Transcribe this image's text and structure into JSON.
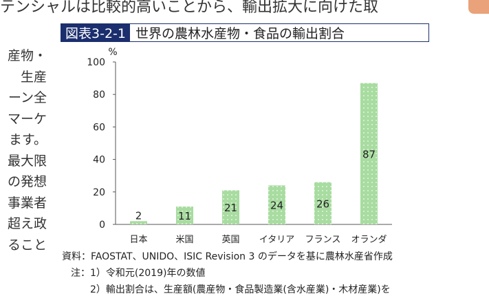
{
  "page": {
    "top_line": "テンシャルは比較的高いことから、輸出拡大に向けた取",
    "left_column": [
      "産物・",
      "生産",
      "ーン全",
      "マーケ",
      "ます。",
      "最大限",
      "の発想",
      "事業者",
      "超え政",
      "ること"
    ]
  },
  "figure": {
    "number": "図表3-2-1",
    "title": "世界の農林水産物・食品の輸出割合"
  },
  "chart_data": {
    "type": "bar",
    "categories": [
      "日本",
      "米国",
      "英国",
      "イタリア",
      "フランス",
      "オランダ"
    ],
    "values": [
      2,
      11,
      21,
      24,
      26,
      87
    ],
    "value_labels": [
      "2",
      "11",
      "21",
      "24",
      "26",
      "87"
    ],
    "ylabel": "%",
    "ylim": [
      0,
      100
    ],
    "yticks": [
      0,
      20,
      40,
      60,
      80,
      100
    ],
    "bar_color": "#a8dca0",
    "grid": false
  },
  "notes": {
    "source": "資料：FAOSTAT、UNIDO、ISIC Revision 3 のデータを基に農林水産省作成",
    "note1": "注：1）令和元(2019)年の数値",
    "note2": "2）輸出割合は、生産額(農産物・食品製造業(含水産業)・木材産業)を"
  }
}
